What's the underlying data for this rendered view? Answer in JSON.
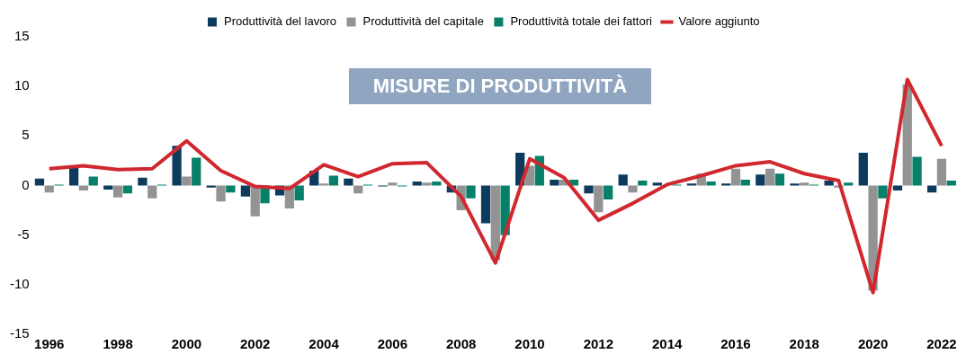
{
  "chart_data": {
    "type": "bar",
    "title": "MISURE DI PRODUTTIVITÀ",
    "categories": [
      "1996",
      null,
      "1998",
      null,
      "2000",
      null,
      "2002",
      null,
      "2004",
      null,
      "2006",
      null,
      "2008",
      null,
      "2010",
      null,
      "2012",
      null,
      "2014",
      null,
      "2016",
      null,
      "2018",
      null,
      "2020",
      null,
      "2022"
    ],
    "series": [
      {
        "name": "Produttività del lavoro",
        "color": "#0d3b5e",
        "values": [
          0.7,
          1.8,
          -0.4,
          0.8,
          4.0,
          -0.2,
          -1.1,
          -1.0,
          1.5,
          0.7,
          -0.1,
          0.4,
          -0.7,
          -3.8,
          3.3,
          0.6,
          -0.8,
          1.1,
          0.3,
          0.2,
          0.2,
          1.1,
          0.2,
          0.5,
          3.3,
          -0.5,
          -0.7
        ]
      },
      {
        "name": "Produttività del capitale",
        "color": "#939393",
        "values": [
          -0.7,
          -0.5,
          -1.2,
          -1.3,
          0.9,
          -1.6,
          -3.1,
          -2.3,
          0.2,
          -0.8,
          0.3,
          0.3,
          -2.5,
          -7.5,
          2.0,
          0.6,
          -2.7,
          -0.7,
          null,
          1.2,
          1.7,
          1.7,
          0.3,
          -0.2,
          -10.6,
          10.2,
          2.7
        ]
      },
      {
        "name": "Produttività totale dei fattori",
        "color": "#07806a",
        "values": [
          0.1,
          0.9,
          -0.8,
          0.1,
          2.8,
          -0.7,
          -1.8,
          -1.5,
          1.0,
          0.1,
          -0.1,
          0.4,
          -1.3,
          -5.0,
          3.0,
          0.6,
          -1.4,
          0.5,
          0.1,
          0.4,
          0.6,
          1.2,
          0.1,
          0.3,
          -1.3,
          2.9,
          0.5
        ]
      },
      {
        "name": "Valore aggiunto",
        "type": "line",
        "color": "#d0282e",
        "values": [
          1.7,
          2.0,
          1.6,
          1.7,
          4.5,
          1.5,
          -0.1,
          -0.3,
          2.1,
          0.9,
          2.2,
          2.3,
          -1.1,
          -7.8,
          2.7,
          0.8,
          -3.5,
          -1.8,
          0.1,
          1.0,
          2.0,
          2.4,
          1.2,
          0.5,
          -10.8,
          10.7,
          4.0
        ]
      }
    ],
    "ylim": [
      -15,
      15
    ],
    "yticks": [
      -15,
      -10,
      -5,
      0,
      5,
      10,
      15
    ],
    "grid": false,
    "legend": "top",
    "marker": "none"
  }
}
